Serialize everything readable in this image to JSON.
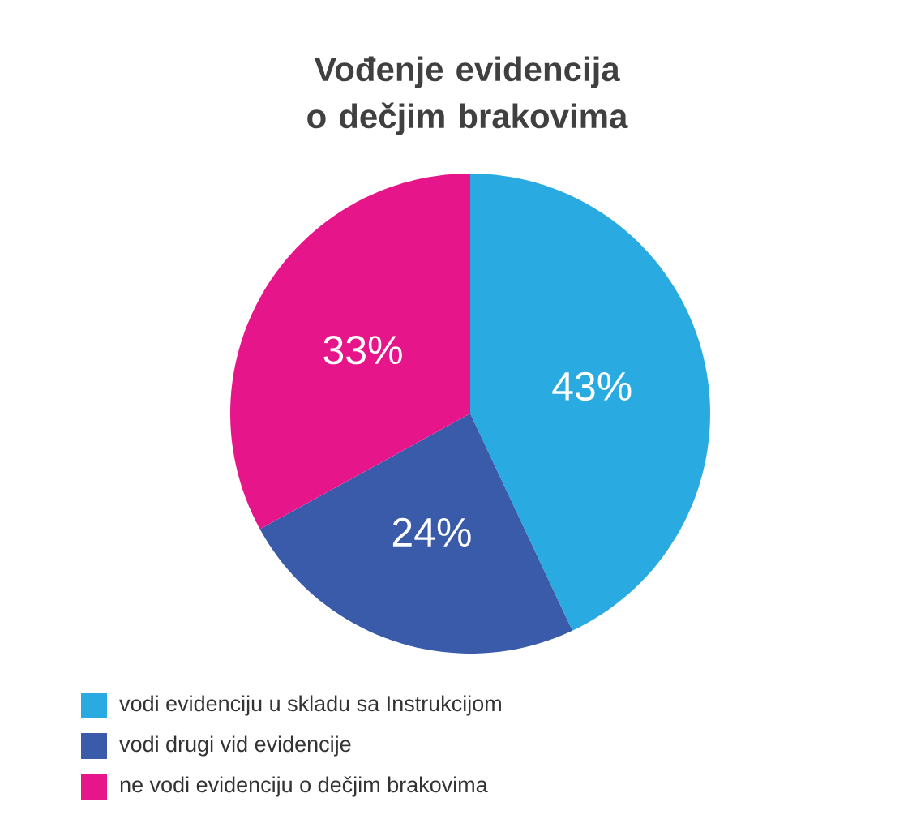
{
  "chart_data": {
    "type": "pie",
    "title": "Vođenje evidencija o dečjim brakovima",
    "categories": [
      "vodi evidenciju u skladu sa Instrukcijom",
      "vodi drugi vid evidencije",
      "ne vodi evidenciju o dečjim brakovima"
    ],
    "values": [
      43,
      24,
      33
    ],
    "value_labels": [
      "43%",
      "24%",
      "33%"
    ],
    "colors": [
      "#29abe2",
      "#3a5ba9",
      "#e6168a"
    ],
    "legend": "bottom"
  }
}
